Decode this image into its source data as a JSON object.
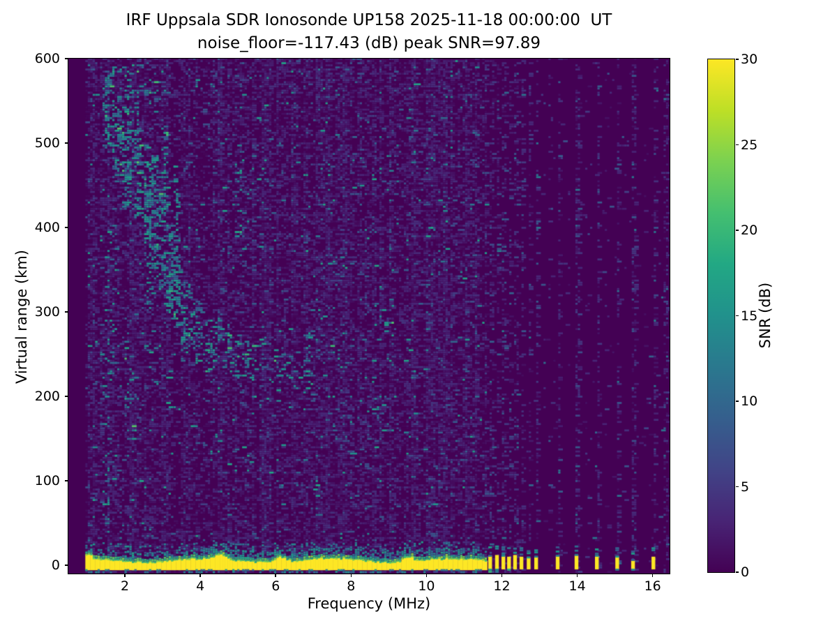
{
  "figure": {
    "title": "IRF Uppsala SDR Ionosonde UP158 2025-11-18 00:00:00  UT",
    "subtitle": "noise_floor=-117.43 (dB) peak SNR=97.89"
  },
  "chart_data": {
    "type": "heatmap",
    "title": "IRF Uppsala SDR Ionosonde UP158 2025-11-18 00:00:00  UT",
    "subtitle": "noise_floor=-117.43 (dB) peak SNR=97.89",
    "xlabel": "Frequency (MHz)",
    "ylabel": "Virtual range (km)",
    "colorbar_label": "SNR (dB)",
    "xlim": [
      0.5,
      16.45
    ],
    "ylim": [
      -10,
      600
    ],
    "clim": [
      0,
      30
    ],
    "x_ticks": [
      2,
      4,
      6,
      8,
      10,
      12,
      14,
      16
    ],
    "y_ticks": [
      0,
      100,
      200,
      300,
      400,
      500,
      600
    ],
    "colorbar_ticks": [
      0,
      5,
      10,
      15,
      20,
      25,
      30
    ],
    "grid": false,
    "legend_position": "colorbar-right",
    "colormap_name": "viridis",
    "colormap_stops": [
      "#440154",
      "#482475",
      "#414487",
      "#355f8d",
      "#2a788e",
      "#21918c",
      "#22a884",
      "#44bf70",
      "#7ad151",
      "#bddf26",
      "#fde725"
    ],
    "noise_model": {
      "seed": 1337,
      "data_freq_start": 0.95,
      "data_freq_end": 16.38,
      "freq_step_mhz": 0.065,
      "range_step_km": 2.5,
      "active_region_end_mhz": 11.58,
      "p_active": 0.45,
      "p_sparse_background": 0.012,
      "p_blob_column": 0.33,
      "column_multipliers": [
        0.55,
        0.8,
        1.0,
        1.35,
        1.75
      ]
    },
    "ground_band": {
      "f_start": 0.95,
      "f_end": 11.58,
      "km_bottom": -6,
      "km_top_base": 8,
      "peak_snr": 30,
      "fringe_bumps_mhz": [
        4.5,
        6.1,
        9.5
      ],
      "start_blob_end_mhz": 1.12
    },
    "interference_blobs": [
      {
        "f": 11.69,
        "h": 11
      },
      {
        "f": 11.87,
        "h": 12
      },
      {
        "f": 12.04,
        "h": 11
      },
      {
        "f": 12.19,
        "h": 10
      },
      {
        "f": 12.35,
        "h": 12
      },
      {
        "f": 12.52,
        "h": 10
      },
      {
        "f": 12.71,
        "h": 9
      },
      {
        "f": 12.91,
        "h": 10
      },
      {
        "f": 13.48,
        "h": 11
      },
      {
        "f": 13.98,
        "h": 12
      },
      {
        "f": 14.52,
        "h": 11
      },
      {
        "f": 15.06,
        "h": 10
      },
      {
        "f": 15.48,
        "h": 6
      },
      {
        "f": 16.02,
        "h": 10
      }
    ],
    "minor_columns": [
      {
        "f": 13.26,
        "p": 0.05
      },
      {
        "f": 13.75,
        "p": 0.04
      },
      {
        "f": 14.25,
        "p": 0.04
      },
      {
        "f": 14.76,
        "p": 0.05
      },
      {
        "f": 15.26,
        "p": 0.04
      },
      {
        "f": 15.76,
        "p": 0.04
      },
      {
        "f": 16.31,
        "p": 0.28
      }
    ],
    "echo_clusters_format": [
      "freq_mhz",
      "km",
      "freq_spread_mhz",
      "km_spread",
      "count"
    ],
    "echo_clusters": [
      [
        1.5,
        540,
        0.1,
        45,
        55
      ],
      [
        1.75,
        505,
        0.1,
        45,
        50
      ],
      [
        2.0,
        480,
        0.12,
        60,
        65
      ],
      [
        2.3,
        462,
        0.12,
        55,
        70
      ],
      [
        2.55,
        438,
        0.1,
        60,
        65
      ],
      [
        2.75,
        415,
        0.1,
        70,
        70
      ],
      [
        2.95,
        385,
        0.1,
        60,
        60
      ],
      [
        3.15,
        350,
        0.1,
        50,
        55
      ],
      [
        3.35,
        320,
        0.1,
        45,
        50
      ],
      [
        3.6,
        295,
        0.12,
        40,
        45
      ],
      [
        3.9,
        275,
        0.15,
        35,
        40
      ],
      [
        4.3,
        260,
        0.2,
        30,
        38
      ],
      [
        4.8,
        250,
        0.25,
        28,
        32
      ],
      [
        5.4,
        242,
        0.3,
        25,
        28
      ],
      [
        6.3,
        235,
        0.4,
        28,
        26
      ],
      [
        6.85,
        240,
        0.1,
        40,
        30
      ],
      [
        1.9,
        560,
        0.3,
        30,
        28
      ],
      [
        2.2,
        545,
        0.2,
        30,
        22
      ],
      [
        2.6,
        570,
        0.3,
        25,
        20
      ],
      [
        3.05,
        470,
        0.07,
        50,
        35
      ],
      [
        3.3,
        430,
        0.07,
        60,
        35
      ],
      [
        2.1,
        205,
        0.15,
        60,
        26
      ],
      [
        1.6,
        300,
        0.15,
        110,
        34
      ],
      [
        1.45,
        150,
        0.15,
        100,
        30
      ],
      [
        5.0,
        420,
        0.12,
        60,
        20
      ],
      [
        7.5,
        300,
        0.3,
        80,
        20
      ],
      [
        8.8,
        225,
        0.3,
        70,
        20
      ],
      [
        2.6,
        330,
        0.1,
        80,
        30
      ]
    ]
  }
}
